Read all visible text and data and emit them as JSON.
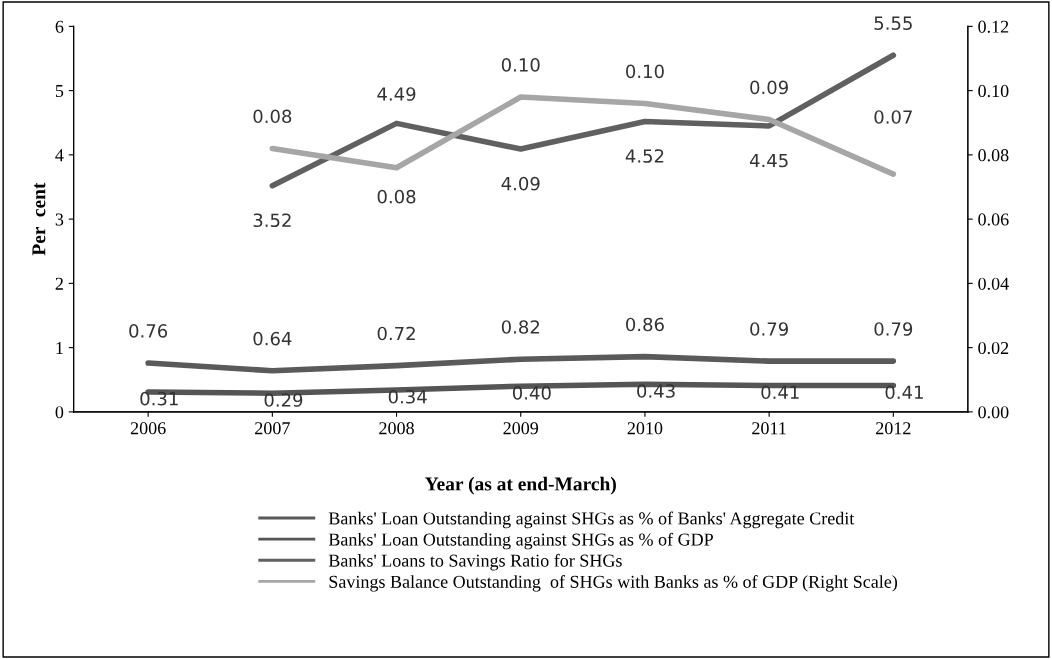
{
  "chart_data": {
    "type": "line",
    "xlabel": "Year (as at end-March)",
    "ylabel": "Per  cent",
    "categories": [
      "2006",
      "2007",
      "2008",
      "2009",
      "2010",
      "2011",
      "2012"
    ],
    "ylim": [
      0,
      6
    ],
    "yticks": [
      0,
      1,
      2,
      3,
      4,
      5,
      6
    ],
    "y2lim": [
      0,
      0.12
    ],
    "y2ticks": [
      {
        "value": 0,
        "label": "0.00"
      },
      {
        "value": 0.02,
        "label": "0.02"
      },
      {
        "value": 0.04,
        "label": "0.04"
      },
      {
        "value": 0.06,
        "label": "0.06"
      },
      {
        "value": 0.08,
        "label": "0.08"
      },
      {
        "value": 0.1,
        "label": "0.10"
      },
      {
        "value": 0.12,
        "label": "0.12"
      }
    ],
    "grid": false,
    "legend": "bottom",
    "marker": "none",
    "line_style": "solid",
    "series": [
      {
        "name": "Banks' Loan Outstanding against SHGs as % of Banks' Aggregate Credit",
        "color": "#5a5a5a",
        "values": [
          0.76,
          0.64,
          0.72,
          0.82,
          0.86,
          0.79,
          0.79
        ],
        "value_labels": [
          "0.76",
          "0.64",
          "0.72",
          "0.82",
          "0.86",
          "0.79",
          "0.79"
        ]
      },
      {
        "name": "Banks' Loan Outstanding against SHGs as % of GDP",
        "color": "#555555",
        "values": [
          0.31,
          0.29,
          0.34,
          0.4,
          0.43,
          0.41,
          0.41
        ],
        "value_labels": [
          "0.31",
          "0.29",
          "0.34",
          "0.40",
          "0.43",
          "0.41",
          "0.41"
        ]
      },
      {
        "name": "Banks' Loans to Savings Ratio for SHGs",
        "color": "#606060",
        "values": [
          null,
          3.52,
          4.49,
          4.09,
          4.52,
          4.45,
          5.55
        ],
        "value_labels": [
          null,
          "3.52",
          "4.49",
          "4.09",
          "4.52",
          "4.45",
          "5.55"
        ]
      },
      {
        "name": "Savings Balance Outstanding  of SHGs with Banks as % of GDP (Right Scale)",
        "color": "#a6a6a6",
        "axis": "y2",
        "values": [
          null,
          0.082,
          0.076,
          0.098,
          0.096,
          0.091,
          0.074
        ],
        "value_labels": [
          null,
          "0.08",
          "0.08",
          "0.10",
          "0.10",
          "0.09",
          "0.07"
        ]
      }
    ]
  }
}
